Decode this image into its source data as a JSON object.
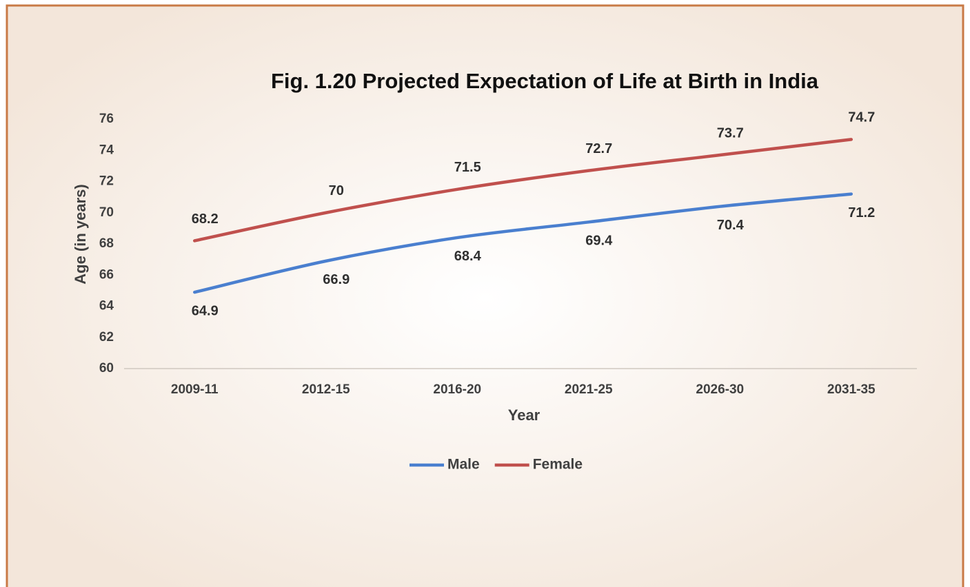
{
  "chart_data": {
    "type": "line",
    "title": "Fig. 1.20 Projected Expectation of Life at Birth in India",
    "x_label": "Year",
    "y_label": "Age (in years)",
    "categories": [
      "2009-11",
      "2012-15",
      "2016-20",
      "2021-25",
      "2026-30",
      "2031-35"
    ],
    "series": [
      {
        "name": "Male",
        "color": "#4a7fcf",
        "values": [
          64.9,
          66.9,
          68.4,
          69.4,
          70.4,
          71.2
        ]
      },
      {
        "name": "Female",
        "color": "#c0504d",
        "values": [
          68.2,
          70,
          71.5,
          72.7,
          73.7,
          74.7
        ]
      }
    ],
    "ylim": [
      60,
      76
    ],
    "yticks": [
      60,
      62,
      64,
      66,
      68,
      70,
      72,
      74,
      76
    ],
    "grid": false,
    "legend": "bottom"
  }
}
